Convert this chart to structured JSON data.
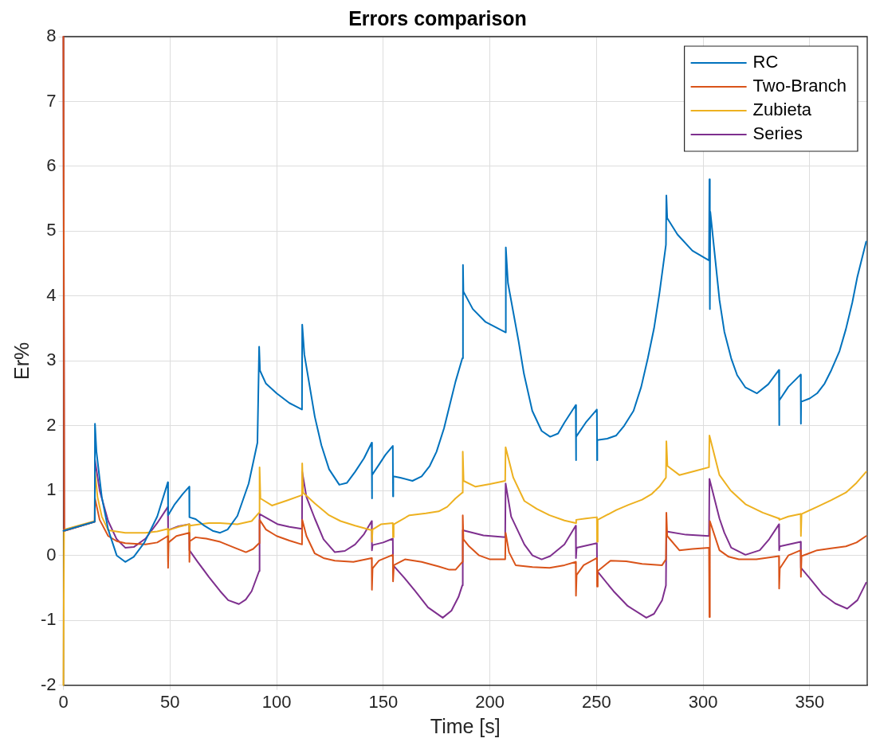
{
  "chart_data": {
    "type": "line",
    "title": "Errors comparison",
    "xlabel": "Time [s]",
    "ylabel": "Er%",
    "xlim": [
      0,
      377
    ],
    "xticks": [
      0,
      50,
      100,
      150,
      200,
      250,
      300,
      350
    ],
    "ylim": [
      -2,
      8
    ],
    "yticks": [
      -2,
      -1,
      0,
      1,
      2,
      3,
      4,
      5,
      6,
      7,
      8
    ],
    "grid": true,
    "legend": "top right",
    "marker": "none",
    "line_style": "solid",
    "series": [
      {
        "name": "RC",
        "color": "#0072bd",
        "x": [
          0,
          14.7,
          14.8,
          15.5,
          18,
          21,
          25,
          29,
          33,
          38,
          44,
          49,
          49.1,
          52,
          56,
          59,
          59.1,
          62,
          66,
          70,
          73.5,
          77,
          81.6,
          86.9,
          91,
          91.8,
          92.2,
          95,
          100,
          106,
          111.9,
          112,
          113,
          117.9,
          121,
          124.6,
          129.4,
          133,
          136.8,
          141,
          144.6,
          144.7,
          144.8,
          148,
          151,
          154.5,
          154.6,
          154.7,
          158,
          163.7,
          168,
          171.8,
          175,
          178.5,
          183.9,
          187.1,
          187.4,
          187.6,
          192,
          198,
          207.3,
          207.5,
          208.5,
          213.5,
          216,
          219.9,
          224.3,
          228.3,
          232,
          235,
          240.3,
          240.4,
          240.5,
          245,
          250.2,
          250.3,
          250.4,
          255,
          259.3,
          263,
          267.4,
          271,
          274.1,
          277,
          279.5,
          282.6,
          282.8,
          283.2,
          288,
          295,
          302.8,
          303,
          303.2,
          303.4,
          307.7,
          310,
          313.2,
          316,
          319.9,
          325.3,
          330.6,
          335.6,
          335.7,
          335.8,
          340,
          345.8,
          345.9,
          346,
          350,
          353.5,
          357,
          360.2,
          364,
          367,
          370,
          372.4,
          376.5
        ],
        "values": [
          0.38,
          0.52,
          2.03,
          1.6,
          0.9,
          0.4,
          0.0,
          -0.1,
          -0.02,
          0.2,
          0.6,
          1.13,
          0.62,
          0.78,
          0.95,
          1.06,
          0.59,
          0.56,
          0.46,
          0.38,
          0.35,
          0.4,
          0.61,
          1.11,
          1.74,
          3.22,
          2.85,
          2.65,
          2.5,
          2.35,
          2.25,
          3.56,
          3.1,
          2.14,
          1.7,
          1.33,
          1.09,
          1.12,
          1.29,
          1.5,
          1.74,
          0.88,
          1.24,
          1.4,
          1.55,
          1.69,
          0.91,
          1.22,
          1.2,
          1.15,
          1.22,
          1.38,
          1.6,
          1.96,
          2.68,
          3.04,
          4.48,
          4.07,
          3.8,
          3.6,
          3.44,
          4.75,
          4.2,
          3.3,
          2.8,
          2.23,
          1.92,
          1.83,
          1.88,
          2.05,
          2.32,
          1.47,
          1.83,
          2.05,
          2.25,
          1.47,
          1.78,
          1.8,
          1.85,
          2.0,
          2.23,
          2.6,
          3.04,
          3.5,
          4.03,
          4.79,
          5.55,
          5.2,
          4.95,
          4.7,
          4.55,
          5.8,
          3.8,
          5.3,
          3.94,
          3.45,
          3.04,
          2.78,
          2.59,
          2.5,
          2.64,
          2.86,
          2.01,
          2.39,
          2.6,
          2.79,
          2.03,
          2.37,
          2.42,
          2.5,
          2.65,
          2.86,
          3.15,
          3.49,
          3.9,
          4.3,
          4.84
        ]
      },
      {
        "name": "Two-Branch",
        "color": "#d95319",
        "x": [
          0,
          0.4,
          14.7,
          14.8,
          17,
          21,
          25,
          29,
          38.5,
          44,
          49,
          49.1,
          49.3,
          53,
          59,
          59.1,
          59.3,
          62,
          67,
          73.5,
          80.2,
          85.6,
          89,
          91.8,
          92,
          95,
          100,
          106,
          111.9,
          112,
          114,
          117.9,
          122,
          127.3,
          136,
          144.6,
          144.7,
          145,
          148,
          154.5,
          154.6,
          155,
          160.2,
          168,
          176,
          181,
          183.9,
          187.1,
          187.3,
          187.6,
          190,
          195,
          200.1,
          207.2,
          207.4,
          209,
          212.1,
          220,
          228,
          235,
          240.3,
          240.4,
          240.7,
          244,
          250.2,
          250.3,
          250.6,
          256.6,
          264,
          271.4,
          280.8,
          282.6,
          282.8,
          283.2,
          288.9,
          295,
          302.8,
          303,
          303.2,
          307.7,
          312,
          316.8,
          325,
          335.6,
          335.7,
          336,
          340,
          345.8,
          345.9,
          346.2,
          353.5,
          360,
          367,
          372,
          376.5
        ],
        "values": [
          8,
          0.38,
          0.52,
          0.88,
          0.55,
          0.3,
          0.22,
          0.19,
          0.17,
          0.2,
          0.3,
          -0.19,
          0.2,
          0.3,
          0.35,
          -0.1,
          0.22,
          0.28,
          0.26,
          0.21,
          0.12,
          0.05,
          0.1,
          0.19,
          0.55,
          0.4,
          0.3,
          0.23,
          0.17,
          0.55,
          0.3,
          0.03,
          -0.04,
          -0.08,
          -0.1,
          -0.04,
          -0.53,
          -0.2,
          -0.08,
          0.01,
          -0.4,
          -0.15,
          -0.06,
          -0.1,
          -0.17,
          -0.22,
          -0.22,
          -0.1,
          0.62,
          0.25,
          0.15,
          0.0,
          -0.06,
          -0.06,
          0.35,
          0.05,
          -0.15,
          -0.18,
          -0.19,
          -0.15,
          -0.1,
          -0.62,
          -0.3,
          -0.15,
          -0.04,
          -0.48,
          -0.24,
          -0.08,
          -0.09,
          -0.13,
          -0.15,
          -0.06,
          0.66,
          0.3,
          0.08,
          0.1,
          0.12,
          -0.95,
          0.53,
          0.08,
          -0.02,
          -0.06,
          -0.06,
          -0.01,
          -0.51,
          -0.2,
          0.0,
          0.08,
          -0.33,
          -0.01,
          0.08,
          0.11,
          0.14,
          0.2,
          0.3
        ]
      },
      {
        "name": "Zubieta",
        "color": "#edb120",
        "x": [
          0,
          0.3,
          14.7,
          14.8,
          16,
          18,
          21,
          29,
          38.5,
          44,
          49,
          49.1,
          49.3,
          54,
          59,
          59.1,
          59.3,
          68.2,
          73.5,
          81.6,
          88.3,
          91.8,
          92,
          92.4,
          97.8,
          105,
          111.9,
          112,
          112.4,
          118,
          124.6,
          130,
          136.8,
          144.6,
          144.7,
          145,
          148.9,
          154.5,
          154.6,
          154.9,
          162.3,
          170,
          176,
          180,
          183.9,
          187.1,
          187.3,
          187.7,
          193.3,
          200,
          207.2,
          207.4,
          211,
          216.2,
          222,
          228,
          235,
          240.3,
          240.5,
          245,
          250.2,
          250.3,
          250.6,
          259.3,
          265,
          271.4,
          276,
          279.5,
          282.6,
          282.8,
          283.3,
          288.9,
          296,
          302.8,
          303,
          307.7,
          313,
          319.9,
          328,
          335.6,
          335.8,
          340,
          345.8,
          345.9,
          346.2,
          353.5,
          360,
          367,
          372,
          376.5
        ],
        "values": [
          -2,
          0.4,
          0.53,
          1.3,
          0.9,
          0.6,
          0.39,
          0.35,
          0.35,
          0.37,
          0.41,
          -0.1,
          0.39,
          0.44,
          0.48,
          0.3,
          0.46,
          0.5,
          0.5,
          0.48,
          0.53,
          0.66,
          1.36,
          0.88,
          0.77,
          0.85,
          0.93,
          1.42,
          0.97,
          0.8,
          0.62,
          0.53,
          0.46,
          0.39,
          0.21,
          0.4,
          0.48,
          0.5,
          0.28,
          0.48,
          0.62,
          0.65,
          0.68,
          0.75,
          0.88,
          0.97,
          1.6,
          1.15,
          1.06,
          1.1,
          1.15,
          1.67,
          1.2,
          0.84,
          0.72,
          0.62,
          0.54,
          0.5,
          0.55,
          0.57,
          0.59,
          0.21,
          0.55,
          0.7,
          0.78,
          0.86,
          0.95,
          1.06,
          1.2,
          1.76,
          1.38,
          1.24,
          1.3,
          1.36,
          1.85,
          1.24,
          1.0,
          0.79,
          0.66,
          0.57,
          0.55,
          0.6,
          0.64,
          0.3,
          0.64,
          0.75,
          0.85,
          0.97,
          1.12,
          1.29
        ]
      },
      {
        "name": "Series",
        "color": "#7e2f8e",
        "x": [
          0,
          0.4,
          14.7,
          14.8,
          17,
          21,
          25,
          29,
          33,
          38.5,
          44,
          49,
          49.1,
          54,
          59,
          59.1,
          63,
          68.2,
          73.5,
          77.3,
          82.3,
          85.5,
          88.3,
          91.8,
          92,
          100.6,
          106,
          111.9,
          112,
          114,
          117.9,
          122,
          127.3,
          132,
          136.8,
          141,
          144.6,
          144.7,
          145,
          150,
          154.5,
          154.6,
          160,
          165,
          171,
          177.9,
          182,
          185.3,
          187.1,
          187.3,
          197,
          207.2,
          207.4,
          210,
          216.2,
          220,
          224.3,
          228.3,
          235,
          240.3,
          240.4,
          240.7,
          250.2,
          250.3,
          258,
          264.7,
          273.4,
          277,
          280.8,
          282.6,
          282.8,
          292,
          302.8,
          303,
          307.7,
          310,
          313.2,
          319.9,
          326.6,
          331,
          335.6,
          335.7,
          336,
          345.8,
          345.9,
          350,
          356.2,
          362,
          367.6,
          372.4,
          376.5
        ],
        "values": [
          8,
          0.38,
          0.52,
          1.47,
          1.0,
          0.53,
          0.25,
          0.12,
          0.13,
          0.26,
          0.5,
          0.75,
          0.39,
          0.45,
          0.48,
          0.08,
          -0.1,
          -0.33,
          -0.55,
          -0.69,
          -0.75,
          -0.68,
          -0.55,
          -0.24,
          0.64,
          0.48,
          0.44,
          0.41,
          1.29,
          0.9,
          0.57,
          0.25,
          0.05,
          0.07,
          0.17,
          0.33,
          0.53,
          0.08,
          0.16,
          0.2,
          0.26,
          -0.15,
          -0.35,
          -0.55,
          -0.8,
          -0.96,
          -0.85,
          -0.64,
          -0.46,
          0.39,
          0.31,
          0.28,
          1.11,
          0.6,
          0.17,
          0.0,
          -0.06,
          -0.01,
          0.17,
          0.46,
          -0.04,
          0.12,
          0.19,
          -0.24,
          -0.55,
          -0.78,
          -0.96,
          -0.9,
          -0.69,
          -0.46,
          0.37,
          0.32,
          0.3,
          1.18,
          0.57,
          0.35,
          0.12,
          0.01,
          0.08,
          0.25,
          0.48,
          0.08,
          0.14,
          0.21,
          -0.19,
          -0.35,
          -0.6,
          -0.74,
          -0.82,
          -0.69,
          -0.42
        ]
      }
    ]
  }
}
